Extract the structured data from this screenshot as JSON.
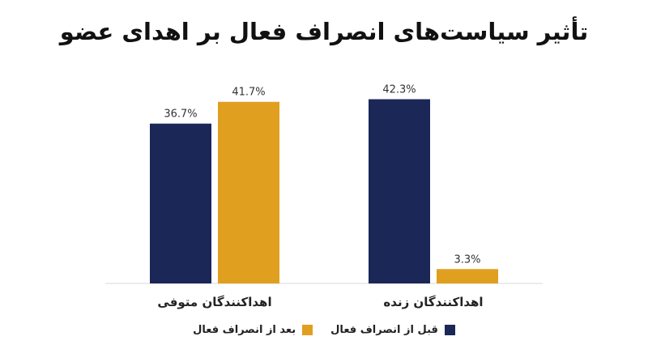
{
  "chart_data": {
    "type": "bar",
    "title": "تأثیر سیاست‌های انصراف فعال بر اهدای عضو",
    "categories": [
      "اهداکنندگان زنده",
      "اهداکنندگان متوفی"
    ],
    "series": [
      {
        "name": "قبل از انصراف فعال",
        "values": [
          42.3,
          36.7
        ],
        "labels": [
          "42.3%",
          "36.7%"
        ],
        "color": "#1b2757"
      },
      {
        "name": "بعد از انصراف فعال",
        "values": [
          3.3,
          41.7
        ],
        "labels": [
          "3.3%",
          "41.7%"
        ],
        "color": "#e19f1f"
      }
    ],
    "ylim": [
      0,
      45
    ],
    "grid": false,
    "legend_position": "bottom"
  }
}
